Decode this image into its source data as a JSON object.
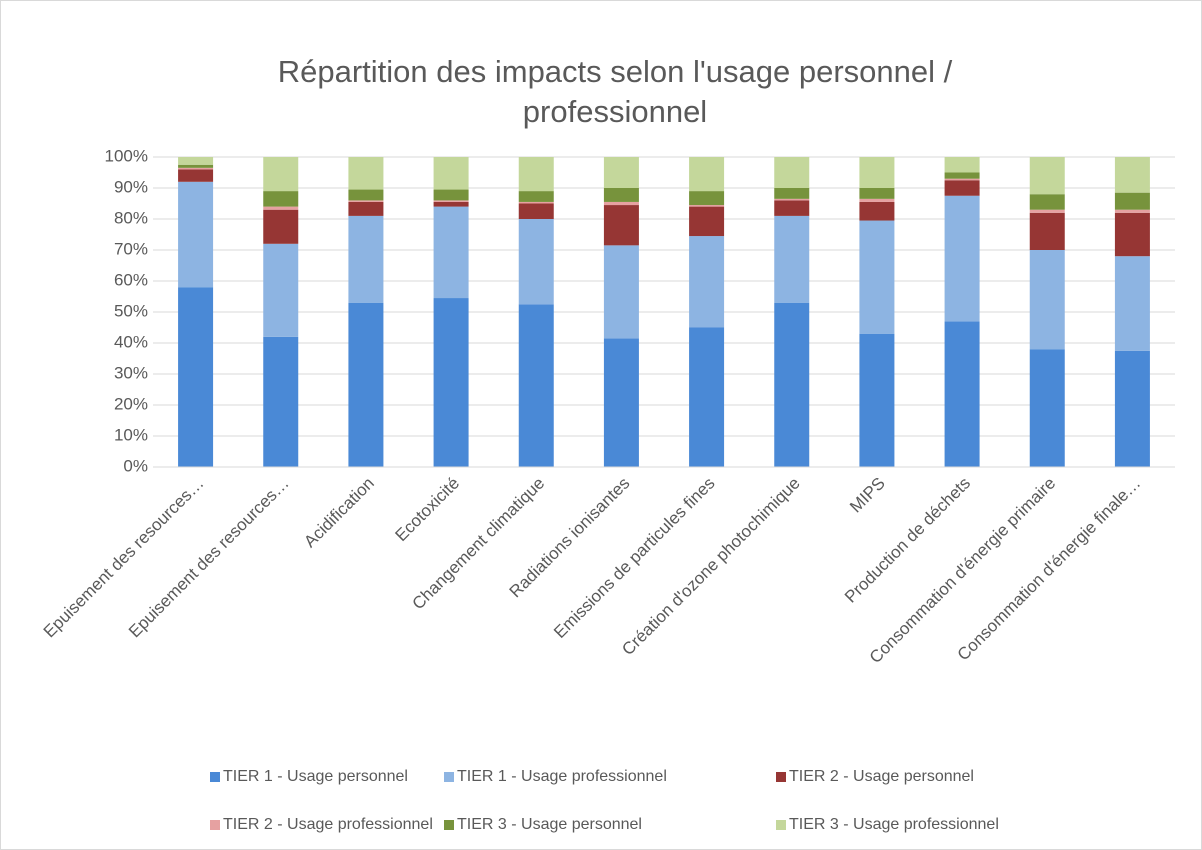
{
  "chart_data": {
    "type": "stacked_bar",
    "title": "Répartition des impacts selon l'usage personnel / professionnel",
    "categories": [
      "Epuisement des resources…",
      "Epuisement des resources…",
      "Acidification",
      "Ecotoxicité",
      "Changement climatique",
      "Radiations ionisantes",
      "Emissions de particules fines",
      "Création d'ozone photochimique",
      "MIPS",
      "Production de déchets",
      "Consommation d'énergie primaire",
      "Consommation d'énergie finale…"
    ],
    "series": [
      {
        "name": "TIER 1 - Usage personnel",
        "color": "#4a89d6",
        "values": [
          58,
          42,
          53,
          54.5,
          52.5,
          41.5,
          45,
          53,
          43,
          47,
          38,
          37.5
        ]
      },
      {
        "name": "TIER 1 - Usage professionnel",
        "color": "#8db4e2",
        "values": [
          34,
          30,
          28,
          29.5,
          27.5,
          30,
          29.5,
          28,
          36.5,
          40.5,
          32,
          30.5
        ]
      },
      {
        "name": "TIER 2 - Usage personnel",
        "color": "#963634",
        "values": [
          4,
          11,
          4.5,
          1.5,
          5,
          13,
          9.5,
          5,
          6,
          5,
          12,
          14
        ]
      },
      {
        "name": "TIER 2 - Usage professionnel",
        "color": "#e6a1a1",
        "values": [
          0.5,
          1,
          0.5,
          0.5,
          0.5,
          1,
          0.5,
          0.5,
          1,
          0.5,
          1,
          1
        ]
      },
      {
        "name": "TIER 3 - Usage personnel",
        "color": "#77933c",
        "values": [
          1,
          5,
          3.5,
          3.5,
          3.5,
          4.5,
          4.5,
          3.5,
          3.5,
          2,
          5,
          5.5
        ]
      },
      {
        "name": "TIER 3 - Usage professionnel",
        "color": "#c4d79b",
        "values": [
          2.5,
          11,
          10.5,
          10.5,
          11,
          10,
          11,
          10,
          10,
          5,
          12,
          11.5
        ]
      }
    ],
    "ylim": [
      0,
      100
    ],
    "yticks": [
      {
        "value": 0,
        "label": "0%"
      },
      {
        "value": 10,
        "label": "10%"
      },
      {
        "value": 20,
        "label": "20%"
      },
      {
        "value": 30,
        "label": "30%"
      },
      {
        "value": 40,
        "label": "40%"
      },
      {
        "value": 50,
        "label": "50%"
      },
      {
        "value": 60,
        "label": "60%"
      },
      {
        "value": 70,
        "label": "70%"
      },
      {
        "value": 80,
        "label": "80%"
      },
      {
        "value": 90,
        "label": "90%"
      },
      {
        "value": 100,
        "label": "100%"
      }
    ],
    "grid": true,
    "legend": "bottom"
  }
}
